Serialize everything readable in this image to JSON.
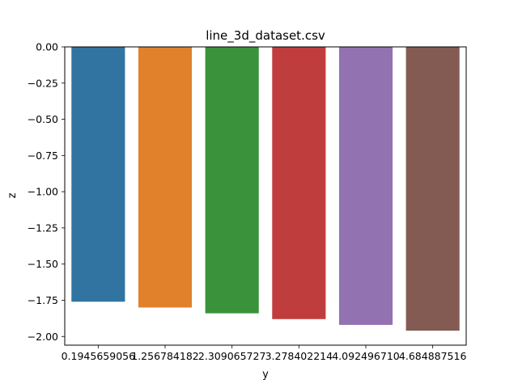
{
  "chart_data": {
    "type": "bar",
    "title": "line_3d_dataset.csv",
    "xlabel": "y",
    "ylabel": "z",
    "categories": [
      "0.194565905",
      "1.256784182",
      "2.309065727",
      "3.278402214",
      "4.092496710",
      "4.684887516"
    ],
    "category_tick_texts": [
      "0.1945659056",
      "1.256784182",
      "2.309065727",
      "3.278402214",
      "4.092496710",
      "4.684887516"
    ],
    "values": [
      -1.76,
      -1.8,
      -1.84,
      -1.88,
      -1.92,
      -1.96
    ],
    "colors": [
      "#3274a1",
      "#e1812c",
      "#3a923a",
      "#c03d3e",
      "#9372b2",
      "#845b53"
    ],
    "ylim": [
      -2.06,
      0.0
    ],
    "yticks": [
      0.0,
      -0.25,
      -0.5,
      -0.75,
      -1.0,
      -1.25,
      -1.5,
      -1.75,
      -2.0
    ],
    "ytick_labels": [
      "0.00",
      "−0.25",
      "−0.50",
      "−0.75",
      "−1.00",
      "−1.25",
      "−1.50",
      "−1.75",
      "−2.00"
    ],
    "grid": false,
    "legend": "none"
  }
}
